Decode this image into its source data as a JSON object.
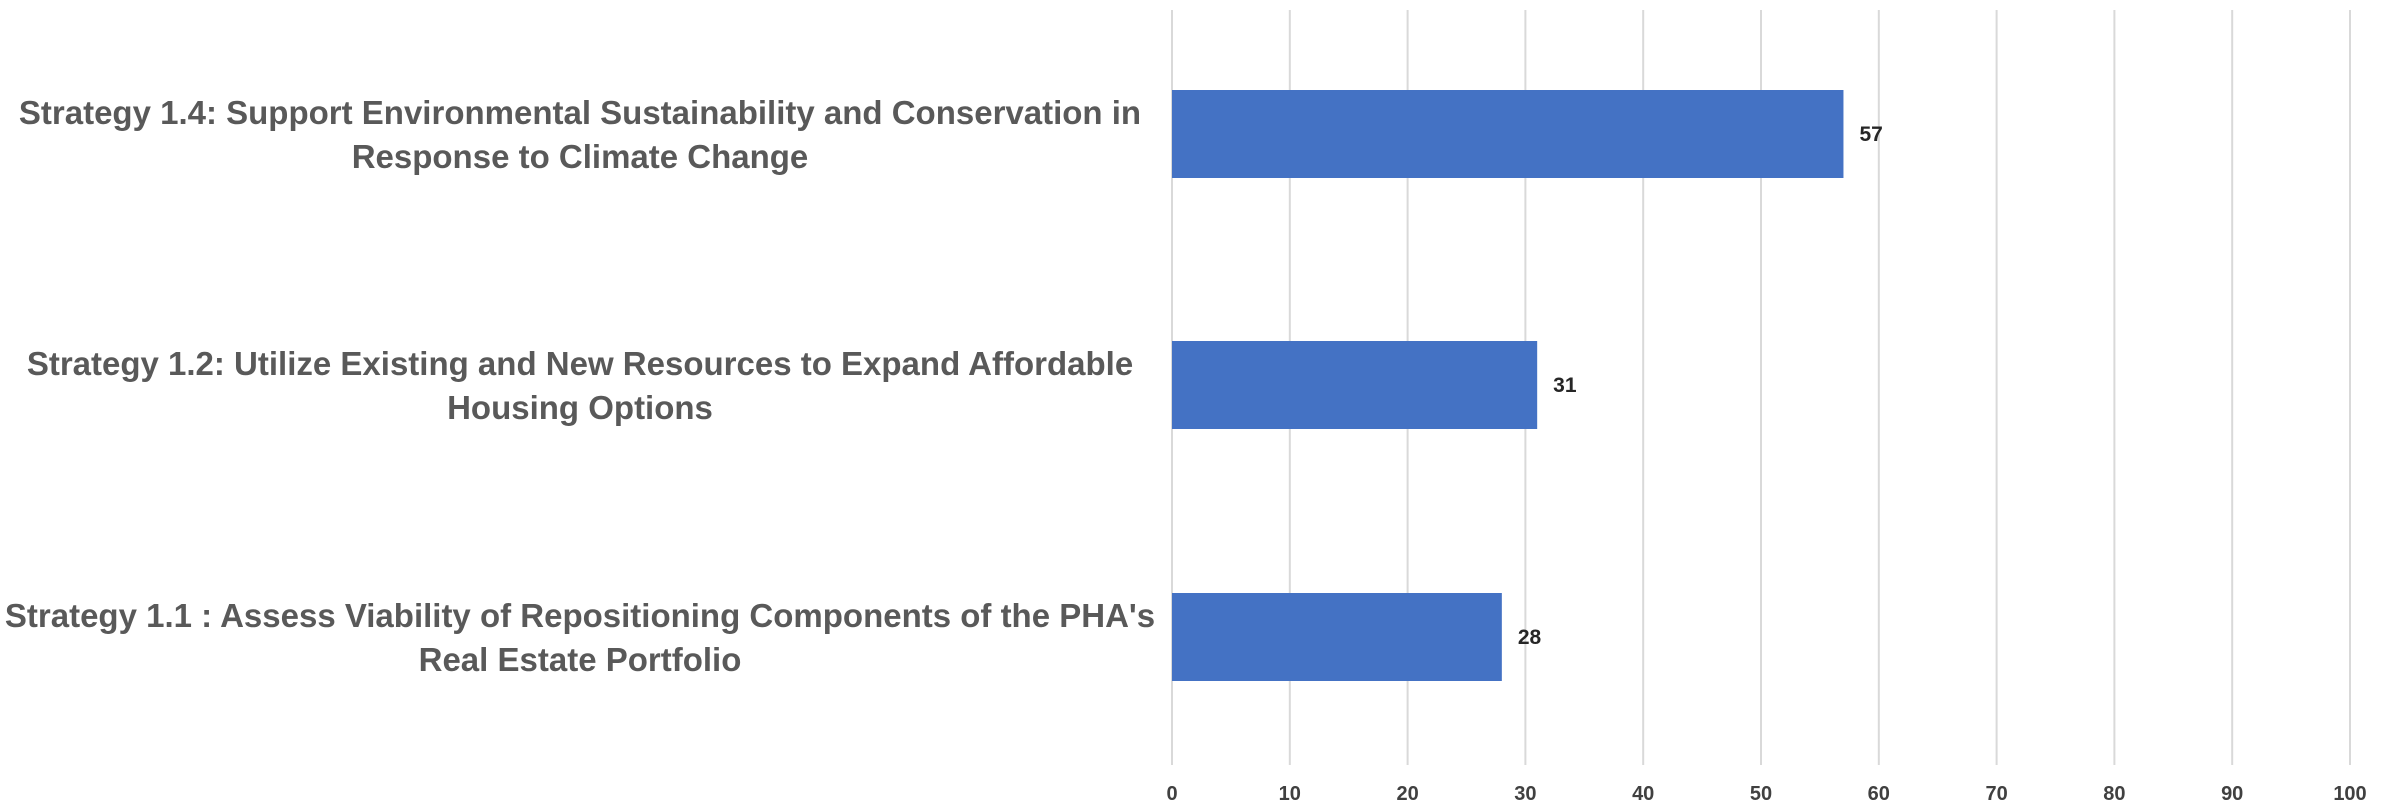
{
  "chart_data": {
    "type": "bar",
    "orientation": "horizontal",
    "title": "",
    "xlabel": "",
    "ylabel": "",
    "categories": [
      {
        "name": "Strategy 1.4:  Support Environmental Sustainability and Conservation in Response to Climate Change",
        "lines": [
          "Strategy 1.4:  Support Environmental Sustainability and Conservation in",
          "Response to Climate Change"
        ]
      },
      {
        "name": "Strategy 1.2:  Utilize Existing and New Resources to Expand Affordable Housing Options",
        "lines": [
          "Strategy 1.2:  Utilize Existing and New Resources to Expand Affordable",
          "Housing Options"
        ]
      },
      {
        "name": "Strategy 1.1 :  Assess Viability of Repositioning Components of the PHA's Real Estate Portfolio",
        "lines": [
          "Strategy 1.1 :  Assess Viability of Repositioning Components of the PHA's",
          "Real Estate Portfolio"
        ]
      }
    ],
    "values": [
      57,
      31,
      28
    ],
    "xlim": [
      0,
      100
    ],
    "xticks": [
      0,
      10,
      20,
      30,
      40,
      50,
      60,
      70,
      80,
      90,
      100
    ],
    "grid": true,
    "legend": "none",
    "data_labels": true,
    "bar_color": "#4472C4"
  }
}
